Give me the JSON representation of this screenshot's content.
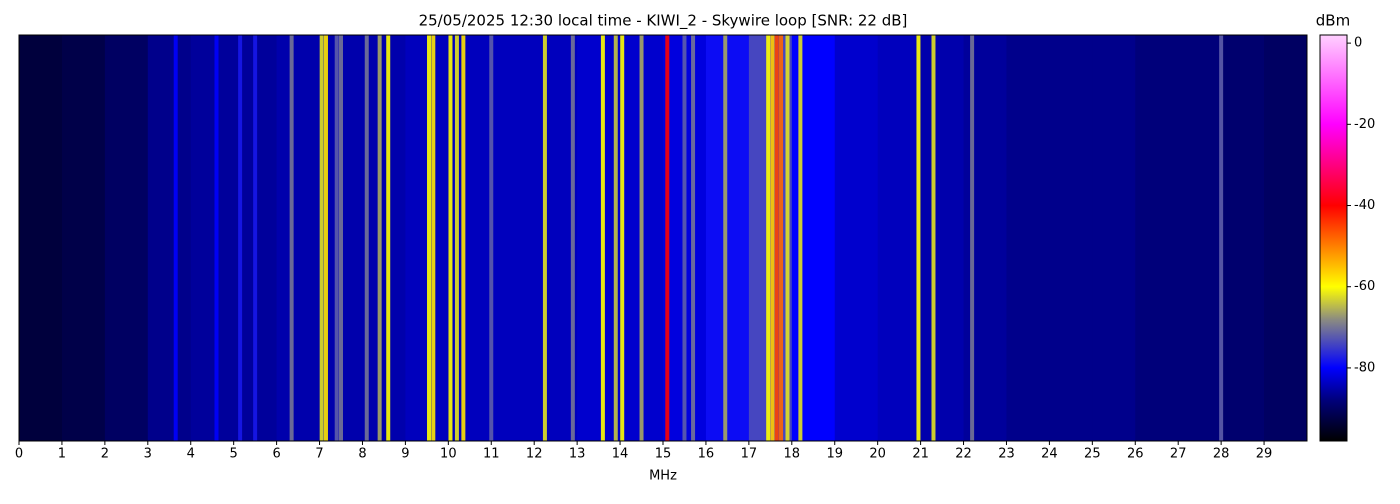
{
  "chart_data": {
    "type": "heatmap",
    "title": "25/05/2025 12:30 local time - KIWI_2 - Skywire loop [SNR: 22 dB]",
    "xlabel": "MHz",
    "colorbar_label": "dBm",
    "xlim": [
      0,
      30
    ],
    "xticks": [
      0,
      1,
      2,
      3,
      4,
      5,
      6,
      7,
      8,
      9,
      10,
      11,
      12,
      13,
      14,
      15,
      16,
      17,
      18,
      19,
      20,
      21,
      22,
      23,
      24,
      25,
      26,
      27,
      28,
      29
    ],
    "clim": [
      -98,
      2
    ],
    "cticks": [
      0,
      -20,
      -40,
      -60,
      -80
    ],
    "colormap": [
      {
        "value": -98,
        "color": "#000000"
      },
      {
        "value": -88,
        "color": "#00007a"
      },
      {
        "value": -80,
        "color": "#0000ff"
      },
      {
        "value": -68,
        "color": "#8c8c80"
      },
      {
        "value": -60,
        "color": "#ffff00"
      },
      {
        "value": -40,
        "color": "#ff0000"
      },
      {
        "value": -20,
        "color": "#ff00ff"
      },
      {
        "value": 2,
        "color": "#ffd0ff"
      }
    ],
    "background": {
      "x": [
        0.5,
        1.5,
        2.5,
        3.5,
        4.5,
        5.5,
        6.5,
        7.5,
        8.5,
        9.5,
        10.5,
        11.5,
        12.5,
        13.5,
        14.5,
        15.5,
        16.5,
        17.5,
        18.5,
        19.5,
        20.5,
        21.5,
        22.5,
        23.5,
        24.5,
        25.5,
        26.5,
        27.5,
        28.5,
        29.5
      ],
      "values": [
        -93,
        -92,
        -90,
        -87,
        -86,
        -86,
        -85,
        -85,
        -85,
        -84,
        -84,
        -84,
        -84,
        -83,
        -83,
        -82,
        -79,
        -74,
        -80,
        -83,
        -84,
        -85,
        -86,
        -87,
        -87,
        -87,
        -88,
        -88,
        -89,
        -90
      ]
    },
    "signals": {
      "x": [
        3.65,
        4.6,
        5.15,
        5.5,
        6.35,
        7.05,
        7.15,
        7.4,
        7.5,
        8.1,
        8.4,
        8.6,
        9.55,
        9.65,
        10.05,
        10.2,
        10.35,
        11.0,
        12.25,
        12.9,
        13.6,
        13.9,
        14.05,
        14.5,
        15.1,
        15.5,
        15.7,
        16.45,
        17.45,
        17.55,
        17.65,
        17.75,
        17.9,
        18.2,
        20.95,
        21.3,
        22.2,
        28.0
      ],
      "values": [
        -80,
        -80,
        -78,
        -78,
        -70,
        -62,
        -58,
        -72,
        -70,
        -70,
        -66,
        -60,
        -60,
        -58,
        -60,
        -62,
        -58,
        -72,
        -62,
        -70,
        -60,
        -64,
        -60,
        -66,
        -40,
        -72,
        -70,
        -66,
        -60,
        -56,
        -45,
        -48,
        -62,
        -62,
        -60,
        -62,
        -70,
        -72
      ]
    }
  }
}
